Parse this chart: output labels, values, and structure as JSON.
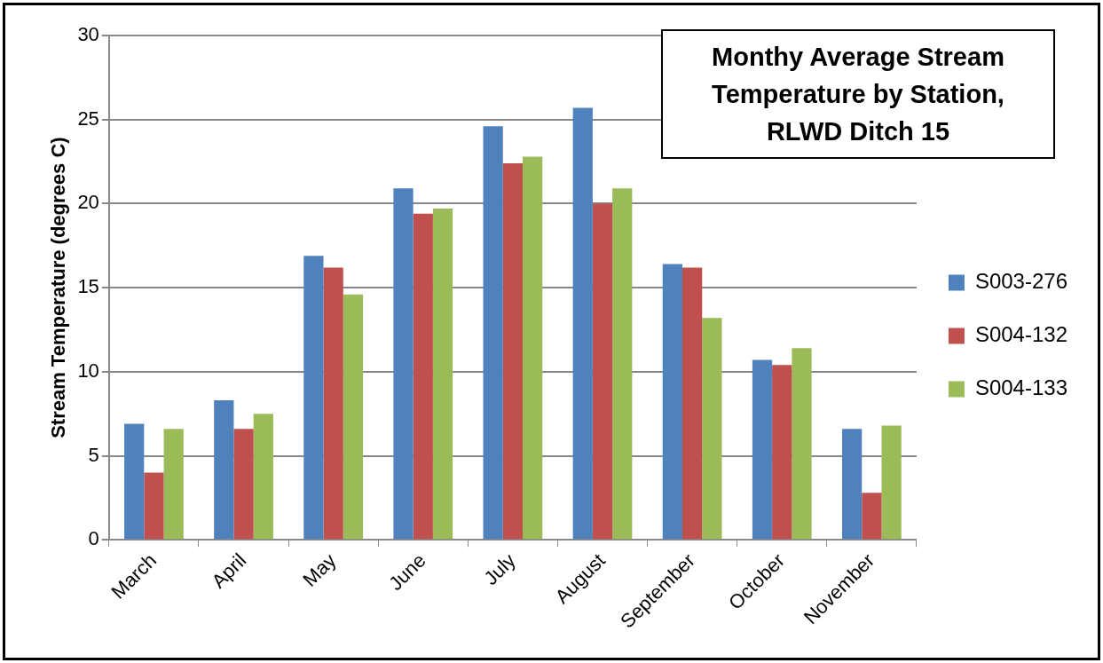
{
  "chart_data": {
    "type": "bar",
    "title": "Monthy Average Stream Temperature by Station, RLWD Ditch 15",
    "ylabel": "Stream Temperature (degrees C)",
    "categories": [
      "March",
      "April",
      "May",
      "June",
      "July",
      "August",
      "September",
      "October",
      "November"
    ],
    "series": [
      {
        "name": "S003-276",
        "color": "#4f81bd",
        "values": [
          6.9,
          8.3,
          16.9,
          20.9,
          24.6,
          25.7,
          16.4,
          10.7,
          6.6
        ]
      },
      {
        "name": "S004-132",
        "color": "#c0504d",
        "values": [
          4.0,
          6.6,
          16.2,
          19.4,
          22.4,
          20.0,
          16.2,
          10.4,
          2.8
        ]
      },
      {
        "name": "S004-133",
        "color": "#9bbb59",
        "values": [
          6.6,
          7.5,
          14.6,
          19.7,
          22.8,
          20.9,
          13.2,
          11.4,
          6.8
        ]
      }
    ],
    "ylim": [
      0,
      30
    ],
    "yticks": [
      0,
      5,
      10,
      15,
      20,
      25,
      30
    ],
    "grid": "y",
    "legend": "right"
  }
}
